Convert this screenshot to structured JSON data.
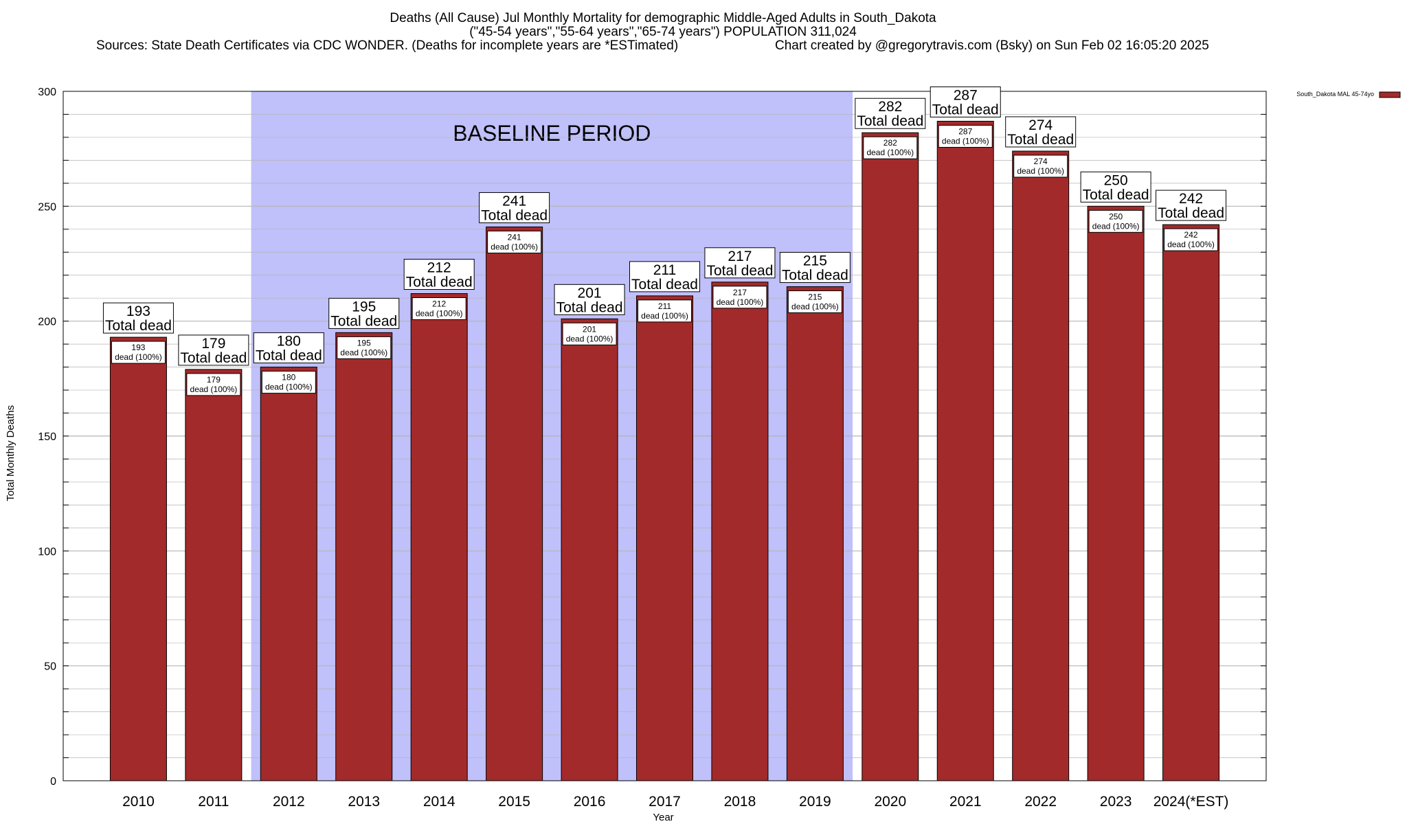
{
  "title_lines": [
    "Deaths (All Cause) Jul Monthly Mortality for demographic Middle-Aged Adults in South_Dakota",
    "(\"45-54 years\",\"55-64 years\",\"65-74 years\") POPULATION 311,024",
    "Sources: State Death Certificates via CDC WONDER. (Deaths for incomplete years are *ESTimated)",
    "Chart created by @gregorytravis.com (Bsky) on Sun Feb 02 16:05:20 2025"
  ],
  "colors": {
    "bar": "#a32a2a",
    "bar_stroke": "#000000",
    "baseline_fill": "#c0c0fa",
    "grid": "#b4b4b4"
  },
  "chart_data": {
    "type": "bar",
    "xlabel": "Year",
    "ylabel": "Total Monthly Deaths",
    "ylim": [
      0,
      300
    ],
    "yticks": [
      0,
      50,
      100,
      150,
      200,
      250,
      300
    ],
    "grid": true,
    "legend": {
      "placement": "top-right",
      "entries": [
        "South_Dakota MAL 45-74yo"
      ]
    },
    "categories": [
      "2010",
      "2011",
      "2012",
      "2013",
      "2014",
      "2015",
      "2016",
      "2017",
      "2018",
      "2019",
      "2020",
      "2021",
      "2022",
      "2023",
      "2024(*EST)"
    ],
    "series": [
      {
        "name": "South_Dakota MAL 45-74yo",
        "values": [
          193,
          179,
          180,
          195,
          212,
          241,
          201,
          211,
          217,
          215,
          282,
          287,
          274,
          250,
          242
        ]
      }
    ],
    "total_label_text": "Total dead",
    "inner_label_text": "dead (100%)",
    "baseline_period": {
      "label": "BASELINE PERIOD",
      "from": "2012",
      "to": "2019"
    }
  }
}
